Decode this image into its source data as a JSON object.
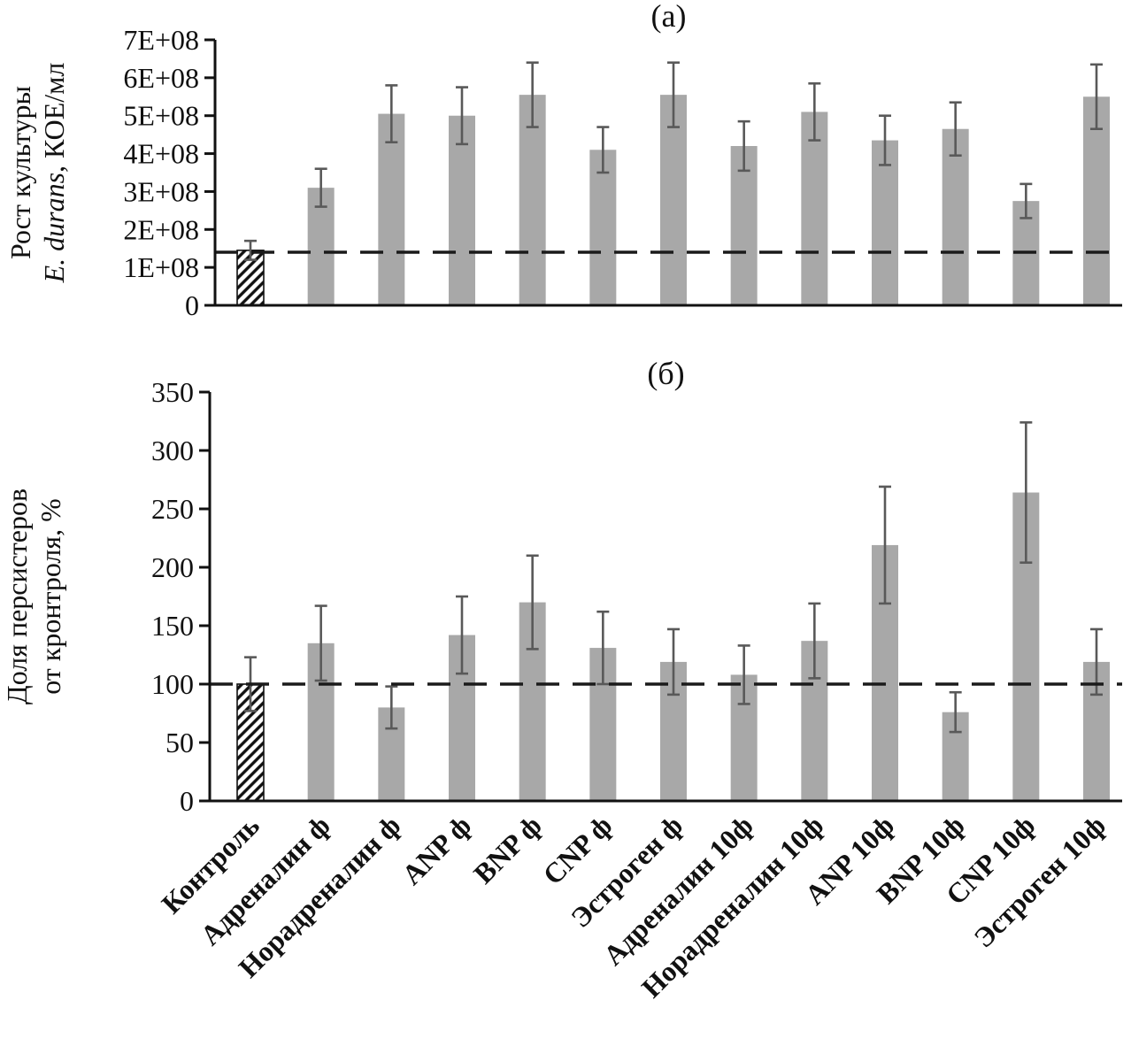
{
  "figure": {
    "background": "#ffffff",
    "bar_color": "#a8a8a8",
    "error_color": "#595959",
    "axis_color": "#111111",
    "dash_color": "#1a1a1a",
    "hatch_color": "#111111"
  },
  "categories": [
    "Контроль",
    "Адреналин ф",
    "Норадреналин ф",
    "ANP ф",
    "BNP ф",
    "CNP ф",
    "Эстроген ф",
    "Адреналин 10ф",
    "Норадреналин 10ф",
    "ANP 10ф",
    "BNP 10ф",
    "CNP 10ф",
    "Эстроген 10ф"
  ],
  "chart_data": [
    {
      "type": "bar",
      "panel": "a",
      "title": "(а)",
      "ylabel_lines": [
        [
          {
            "text": "Рост культуры"
          }
        ],
        [
          {
            "text": "E. durans",
            "italic": true
          },
          {
            "text": ", КОЕ/мл"
          }
        ]
      ],
      "categories": [
        "Контроль",
        "Адреналин ф",
        "Норадреналин ф",
        "ANP ф",
        "BNP ф",
        "CNP ф",
        "Эстроген ф",
        "Адреналин 10ф",
        "Норадреналин 10ф",
        "ANP 10ф",
        "BNP 10ф",
        "CNP 10ф",
        "Эстроген 10ф"
      ],
      "values": [
        145000000,
        310000000,
        505000000,
        500000000,
        555000000,
        410000000,
        555000000,
        420000000,
        510000000,
        435000000,
        465000000,
        275000000,
        550000000
      ],
      "errors": [
        25000000,
        50000000,
        75000000,
        75000000,
        85000000,
        60000000,
        85000000,
        65000000,
        75000000,
        65000000,
        70000000,
        45000000,
        85000000
      ],
      "ylim": [
        0,
        700000000
      ],
      "yticks": [
        {
          "value": 0,
          "label": "0"
        },
        {
          "value": 100000000,
          "label": "1E+08"
        },
        {
          "value": 200000000,
          "label": "2E+08"
        },
        {
          "value": 300000000,
          "label": "3E+08"
        },
        {
          "value": 400000000,
          "label": "4E+08"
        },
        {
          "value": 500000000,
          "label": "5E+08"
        },
        {
          "value": 600000000,
          "label": "6E+08"
        },
        {
          "value": 700000000,
          "label": "7E+08"
        }
      ],
      "reference_line": 140000000,
      "hatched_index": 0,
      "grid": false,
      "legend": "none"
    },
    {
      "type": "bar",
      "panel": "b",
      "title": "(б)",
      "ylabel_lines": [
        [
          {
            "text": "Доля персистеров"
          }
        ],
        [
          {
            "text": "от кронтроля, %"
          }
        ]
      ],
      "categories": [
        "Контроль",
        "Адреналин ф",
        "Норадреналин ф",
        "ANP ф",
        "BNP ф",
        "CNP ф",
        "Эстроген ф",
        "Адреналин 10ф",
        "Норадреналин 10ф",
        "ANP 10ф",
        "BNP 10ф",
        "CNP 10ф",
        "Эстроген 10ф"
      ],
      "values": [
        100,
        135,
        80,
        142,
        170,
        131,
        119,
        108,
        137,
        219,
        76,
        264,
        119
      ],
      "errors": [
        23,
        32,
        18,
        33,
        40,
        31,
        28,
        25,
        32,
        50,
        17,
        60,
        28
      ],
      "ylim": [
        0,
        350
      ],
      "yticks": [
        {
          "value": 0,
          "label": "0"
        },
        {
          "value": 50,
          "label": "50"
        },
        {
          "value": 100,
          "label": "100"
        },
        {
          "value": 150,
          "label": "150"
        },
        {
          "value": 200,
          "label": "200"
        },
        {
          "value": 250,
          "label": "250"
        },
        {
          "value": 300,
          "label": "300"
        },
        {
          "value": 350,
          "label": "350"
        }
      ],
      "reference_line": 100,
      "hatched_index": 0,
      "grid": false,
      "legend": "none"
    }
  ]
}
